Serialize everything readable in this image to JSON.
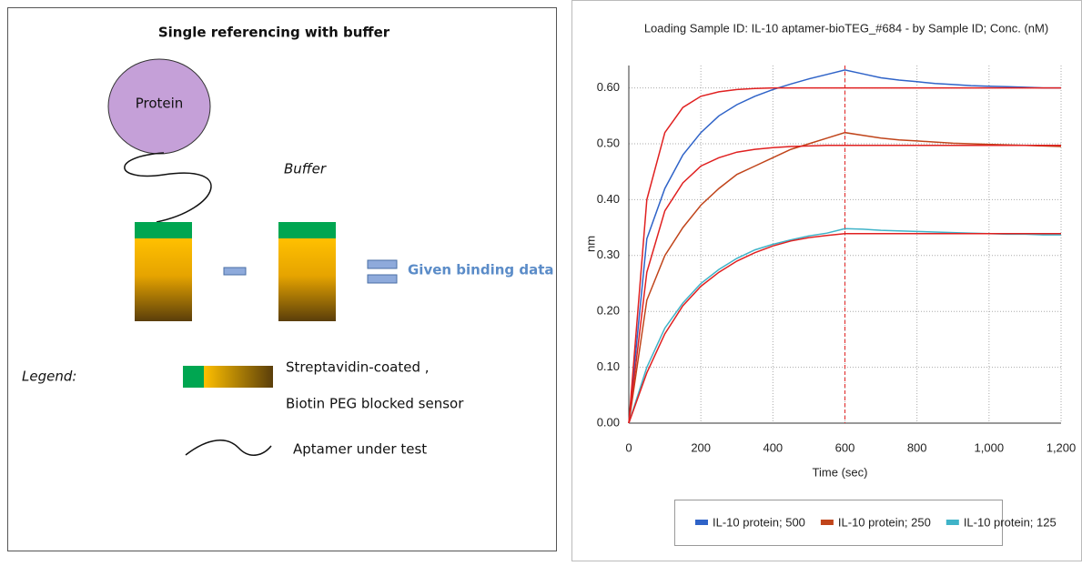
{
  "diagram": {
    "title": "Single  referencing with buffer",
    "protein": "Protein",
    "buffer": "Buffer",
    "result": "Given binding data",
    "legend_label": "Legend:",
    "sensor_line1": "Streptavidin-coated ,",
    "sensor_line2": "Biotin PEG blocked sensor",
    "aptamer": "Aptamer under test"
  },
  "chart_data": {
    "type": "line",
    "title": "Loading Sample ID: IL-10 aptamer-bioTEG_#684 - by Sample ID; Conc. (nM)",
    "x_label": "Time (sec)",
    "y_label": "nm",
    "x": [
      0,
      50,
      100,
      150,
      200,
      250,
      300,
      350,
      400,
      450,
      500,
      550,
      600,
      650,
      700,
      750,
      800,
      850,
      900,
      950,
      1000,
      1050,
      1100,
      1150,
      1200
    ],
    "xlim": [
      0,
      1200
    ],
    "xticks": [
      0,
      200,
      400,
      600,
      800,
      {
        "value": 1000,
        "label": "1,000"
      },
      {
        "value": 1200,
        "label": "1,200"
      }
    ],
    "ylim": [
      0,
      0.64
    ],
    "yticks": [
      {
        "value": 0,
        "label": "0.00"
      },
      {
        "value": 0.1,
        "label": "0.10"
      },
      {
        "value": 0.2,
        "label": "0.20"
      },
      {
        "value": 0.3,
        "label": "0.30"
      },
      {
        "value": 0.4,
        "label": "0.40"
      },
      {
        "value": 0.5,
        "label": "0.50"
      },
      {
        "value": 0.6,
        "label": "0.60"
      }
    ],
    "grid": true,
    "legend": "bottom",
    "vline": 600,
    "vline_color": "#e02020",
    "series": [
      {
        "name": "IL-10 protein; 500",
        "color": "#2f63c8",
        "values": [
          0,
          0.33,
          0.42,
          0.48,
          0.52,
          0.55,
          0.57,
          0.585,
          0.597,
          0.607,
          0.616,
          0.624,
          0.632,
          0.625,
          0.618,
          0.614,
          0.611,
          0.608,
          0.606,
          0.604,
          0.603,
          0.602,
          0.601,
          0.6,
          0.6
        ]
      },
      {
        "name": "IL-10 protein; 250",
        "color": "#c0441a",
        "values": [
          0,
          0.22,
          0.3,
          0.35,
          0.39,
          0.42,
          0.445,
          0.46,
          0.475,
          0.49,
          0.5,
          0.51,
          0.52,
          0.515,
          0.51,
          0.507,
          0.505,
          0.503,
          0.501,
          0.5,
          0.499,
          0.498,
          0.497,
          0.496,
          0.495
        ]
      },
      {
        "name": "IL-10 protein; 125",
        "color": "#3fb3c8",
        "values": [
          0,
          0.1,
          0.17,
          0.215,
          0.25,
          0.275,
          0.295,
          0.31,
          0.32,
          0.328,
          0.335,
          0.34,
          0.348,
          0.347,
          0.345,
          0.344,
          0.343,
          0.342,
          0.341,
          0.34,
          0.339,
          0.338,
          0.338,
          0.337,
          0.337
        ]
      },
      {
        "color": "#e02020",
        "values": [
          0,
          0.4,
          0.52,
          0.565,
          0.585,
          0.593,
          0.597,
          0.599,
          0.6,
          0.6,
          0.6,
          0.6,
          0.6,
          0.6,
          0.6,
          0.6,
          0.6,
          0.6,
          0.6,
          0.6,
          0.6,
          0.6,
          0.6,
          0.6,
          0.6
        ]
      },
      {
        "color": "#e02020",
        "values": [
          0,
          0.27,
          0.38,
          0.43,
          0.46,
          0.475,
          0.485,
          0.49,
          0.493,
          0.495,
          0.496,
          0.497,
          0.497,
          0.497,
          0.497,
          0.497,
          0.497,
          0.497,
          0.497,
          0.497,
          0.497,
          0.497,
          0.497,
          0.497,
          0.497
        ]
      },
      {
        "color": "#e02020",
        "values": [
          0,
          0.09,
          0.16,
          0.21,
          0.245,
          0.27,
          0.29,
          0.305,
          0.317,
          0.326,
          0.332,
          0.336,
          0.339,
          0.339,
          0.339,
          0.339,
          0.339,
          0.339,
          0.339,
          0.339,
          0.339,
          0.339,
          0.339,
          0.339,
          0.339
        ]
      }
    ]
  }
}
